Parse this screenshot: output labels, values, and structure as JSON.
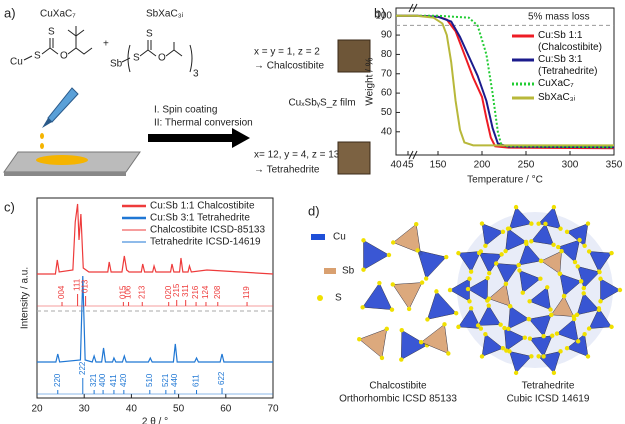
{
  "panel_a": {
    "panel_label": "a)",
    "precursor_1": "CuXaC₇",
    "precursor_2": "SbXaC₃ᵢ",
    "plus": "+",
    "atoms_1": [
      "Cu",
      "S",
      "S",
      "O"
    ],
    "atoms_2": [
      "Sb",
      "S",
      "S",
      "O"
    ],
    "multiplier": "3",
    "step_1": "I. Spin coating",
    "step_2": "II: Thermal conversion",
    "film": "CuₓSbᵧS_z film",
    "product_1_ratio": "x = y = 1, z = 2",
    "product_1_name": "→ Chalcostibite",
    "product_2_ratio": "x= 12, y = 4, z = 13",
    "product_2_name": "→ Tetrahedrite"
  },
  "chart_data": [
    {
      "type": "line",
      "panel_label": "b)",
      "xlabel": "Temperature / °C",
      "ylabel": "Weight / %",
      "annotation": "5% mass loss",
      "hline": 95,
      "xlim": [
        40,
        350
      ],
      "xbreak": [
        45,
        125
      ],
      "xticks": [
        40,
        45,
        150,
        200,
        250,
        300,
        350
      ],
      "ylim": [
        28,
        104
      ],
      "yticks": [
        40,
        50,
        60,
        70,
        80,
        90,
        100
      ],
      "series": [
        {
          "name": "Cu:Sb 1:1 (Chalcostibite)",
          "color": "#ee1c25",
          "style": "solid",
          "x": [
            40,
            45,
            125,
            150,
            160,
            170,
            180,
            190,
            200,
            205,
            210,
            215,
            230,
            350
          ],
          "values": [
            100,
            100,
            100,
            99.5,
            98,
            92,
            80,
            68,
            58,
            47,
            37,
            32.5,
            31.8,
            31.5
          ]
        },
        {
          "name": "Cu:Sb 3:1 (Tetrahedrite)",
          "color": "#1b1b8c",
          "style": "solid",
          "x": [
            40,
            45,
            125,
            150,
            165,
            175,
            185,
            195,
            205,
            212,
            218,
            230,
            350
          ],
          "values": [
            100,
            100,
            100,
            99.5,
            97,
            89,
            79,
            69,
            56,
            42,
            34,
            32.3,
            32
          ]
        },
        {
          "name": "CuXaC₇",
          "color": "#22cc33",
          "style": "dotted",
          "x": [
            40,
            45,
            125,
            150,
            185,
            195,
            205,
            212,
            218,
            222,
            230,
            350
          ],
          "values": [
            100,
            100,
            100,
            100,
            99,
            95,
            80,
            60,
            40,
            33,
            32.5,
            32
          ]
        },
        {
          "name": "SbXaC₃ᵢ",
          "color": "#b8b83a",
          "style": "solid",
          "x": [
            40,
            45,
            125,
            145,
            155,
            160,
            165,
            170,
            175,
            180,
            190,
            350
          ],
          "values": [
            100,
            100,
            100,
            99,
            96,
            90,
            76,
            56,
            41,
            34.5,
            33,
            33
          ]
        }
      ]
    },
    {
      "type": "xrd",
      "panel_label": "c)",
      "xlabel": "2 θ / °",
      "ylabel": "Intensity / a.u.",
      "xlim": [
        20,
        70
      ],
      "xticks": [
        20,
        30,
        40,
        50,
        60,
        70
      ],
      "ylim": [
        0,
        100
      ],
      "series": [
        {
          "name": "Cu:Sb 1:1 Chalcostibite",
          "color": "#ee3b3b",
          "kind": "pattern",
          "x": [
            20,
            23.9,
            24.3,
            24.7,
            27.6,
            28.1,
            28.6,
            28.9,
            29.3,
            29.8,
            31,
            35,
            35.3,
            35.7,
            38,
            38.5,
            39,
            39.5,
            42.1,
            42.4,
            42.8,
            44.5,
            44.8,
            45.2,
            48.3,
            48.6,
            49,
            50.2,
            50.5,
            50.9,
            52,
            52.3,
            52.7,
            56,
            70
          ],
          "values": [
            0,
            0,
            7,
            1,
            2,
            26,
            35,
            17,
            30,
            3,
            1,
            1,
            6,
            1,
            1,
            9,
            2,
            1,
            1,
            5,
            1,
            1,
            4,
            1,
            1,
            5,
            1,
            1,
            8,
            1,
            1,
            4,
            1,
            2,
            0
          ]
        },
        {
          "name": "Cu:Sb 3:1 Tetrahedrite",
          "color": "#1f77d4",
          "kind": "pattern",
          "x": [
            20,
            24,
            24.4,
            24.8,
            29.2,
            29.7,
            30.2,
            31.7,
            32.1,
            32.5,
            33.7,
            34.1,
            34.5,
            36,
            36.3,
            36.7,
            38.1,
            38.5,
            38.9,
            43.6,
            44,
            44.4,
            48.9,
            49.3,
            49.7,
            53.4,
            53.8,
            54.2,
            58.8,
            59.2,
            59.6,
            70
          ],
          "values": [
            0,
            0,
            4,
            0,
            1,
            43,
            1,
            0,
            3,
            0,
            0,
            7,
            0,
            0,
            2,
            0,
            0,
            3,
            0,
            0,
            2,
            0,
            0,
            9,
            0,
            0,
            2,
            0,
            0,
            4,
            0,
            0
          ]
        },
        {
          "name": "Chalcostibite ICSD-85133",
          "color": "#ee3b3b",
          "kind": "reference",
          "x": [
            25.3,
            28.6,
            30.3,
            38.3,
            39.4,
            42.3,
            47.9,
            49.6,
            51.5,
            53.7,
            55.8,
            58.3,
            64.5
          ],
          "values": [
            2,
            6,
            5,
            2,
            2,
            2,
            2,
            3,
            3,
            2,
            2,
            2,
            2
          ],
          "labels": [
            "004",
            "111",
            "013",
            "015",
            "106",
            "213",
            "020",
            "215",
            "311",
            "216",
            "124",
            "208",
            "119"
          ]
        },
        {
          "name": "Tetrahedrite ICSD-14619",
          "color": "#1f77d4",
          "kind": "reference",
          "x": [
            24.4,
            29.7,
            32.1,
            34,
            36.3,
            38.4,
            43.9,
            47.3,
            49.2,
            53.8,
            59.2
          ],
          "values": [
            2,
            8,
            2,
            2,
            2,
            2,
            2,
            2,
            2,
            2,
            3
          ],
          "labels": [
            "220",
            "222",
            "321",
            "400",
            "411",
            "420",
            "510",
            "521",
            "440",
            "611",
            "622"
          ]
        }
      ]
    }
  ],
  "panel_d": {
    "panel_label": "d)",
    "legend": [
      "Cu",
      "Sb",
      "S"
    ],
    "structure_1": [
      "Chalcostibite",
      "Orthorhombic ICSD 85133"
    ],
    "structure_2": [
      "Tetrahedrite",
      "Cubic ICSD 14619"
    ]
  }
}
